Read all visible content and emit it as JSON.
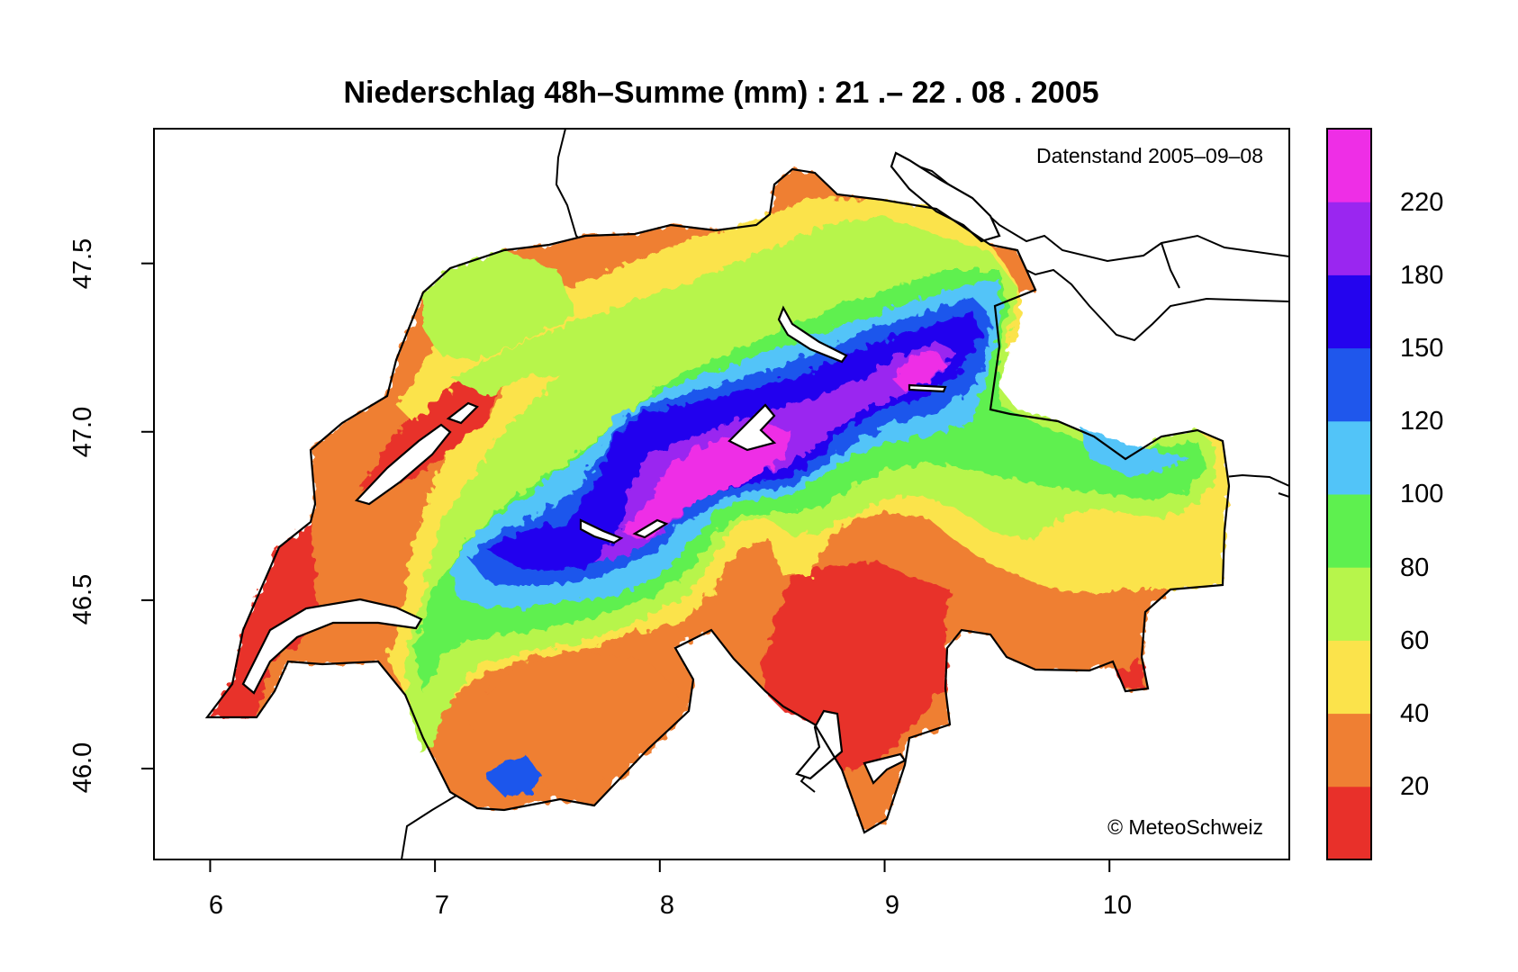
{
  "title": "Niederschlag 48h–Summe (mm) : 21 .– 22 . 08 . 2005",
  "annotations": {
    "datenstand": "Datenstand 2005–09–08",
    "copyright": "© MeteoSchweiz"
  },
  "axes": {
    "x_ticks": [
      "6",
      "7",
      "8",
      "9",
      "10"
    ],
    "y_ticks": [
      "46.0",
      "46.5",
      "47.0",
      "47.5"
    ],
    "xlim": [
      5.75,
      10.8
    ],
    "ylim": [
      45.73,
      47.9
    ]
  },
  "legend": {
    "labels": [
      "20",
      "40",
      "60",
      "80",
      "100",
      "120",
      "150",
      "180",
      "220"
    ],
    "colors": [
      "#e8302a",
      "#ef7f33",
      "#fbe34b",
      "#b7f54b",
      "#5ef04f",
      "#52c4f8",
      "#1f57ec",
      "#2404ee",
      "#9a26f0",
      "#ee2ee6"
    ]
  },
  "colors": {
    "lake_fill": "#ffffff",
    "border_line": "#000000"
  }
}
